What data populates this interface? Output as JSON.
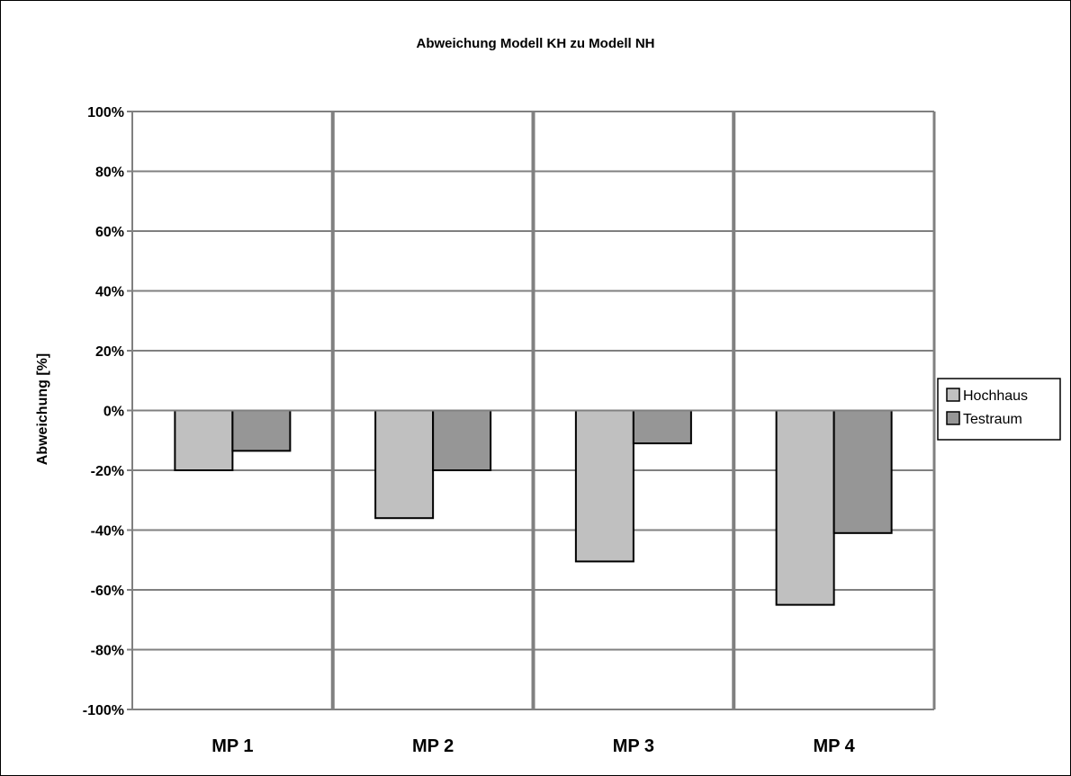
{
  "chart_data": {
    "type": "bar",
    "title": "Abweichung Modell KH zu Modell NH",
    "xlabel": "",
    "ylabel": "Abweichung [%]",
    "categories": [
      "MP 1",
      "MP 2",
      "MP 3",
      "MP 4"
    ],
    "series": [
      {
        "name": "Hochhaus",
        "color": "#c0c0c0",
        "values": [
          -20,
          -36,
          -50.5,
          -65
        ]
      },
      {
        "name": "Testraum",
        "color": "#969696",
        "values": [
          -13.5,
          -20,
          -11,
          -41
        ]
      }
    ],
    "ylim": [
      -100,
      100
    ],
    "ytick_values": [
      100,
      80,
      60,
      40,
      20,
      0,
      -20,
      -40,
      -60,
      -80,
      -100
    ],
    "ytick_labels": [
      "100%",
      "80%",
      "60%",
      "40%",
      "20%",
      "0%",
      "-20%",
      "-40%",
      "-60%",
      "-80%",
      "-100%"
    ],
    "grid": true,
    "legend_position": "right"
  }
}
